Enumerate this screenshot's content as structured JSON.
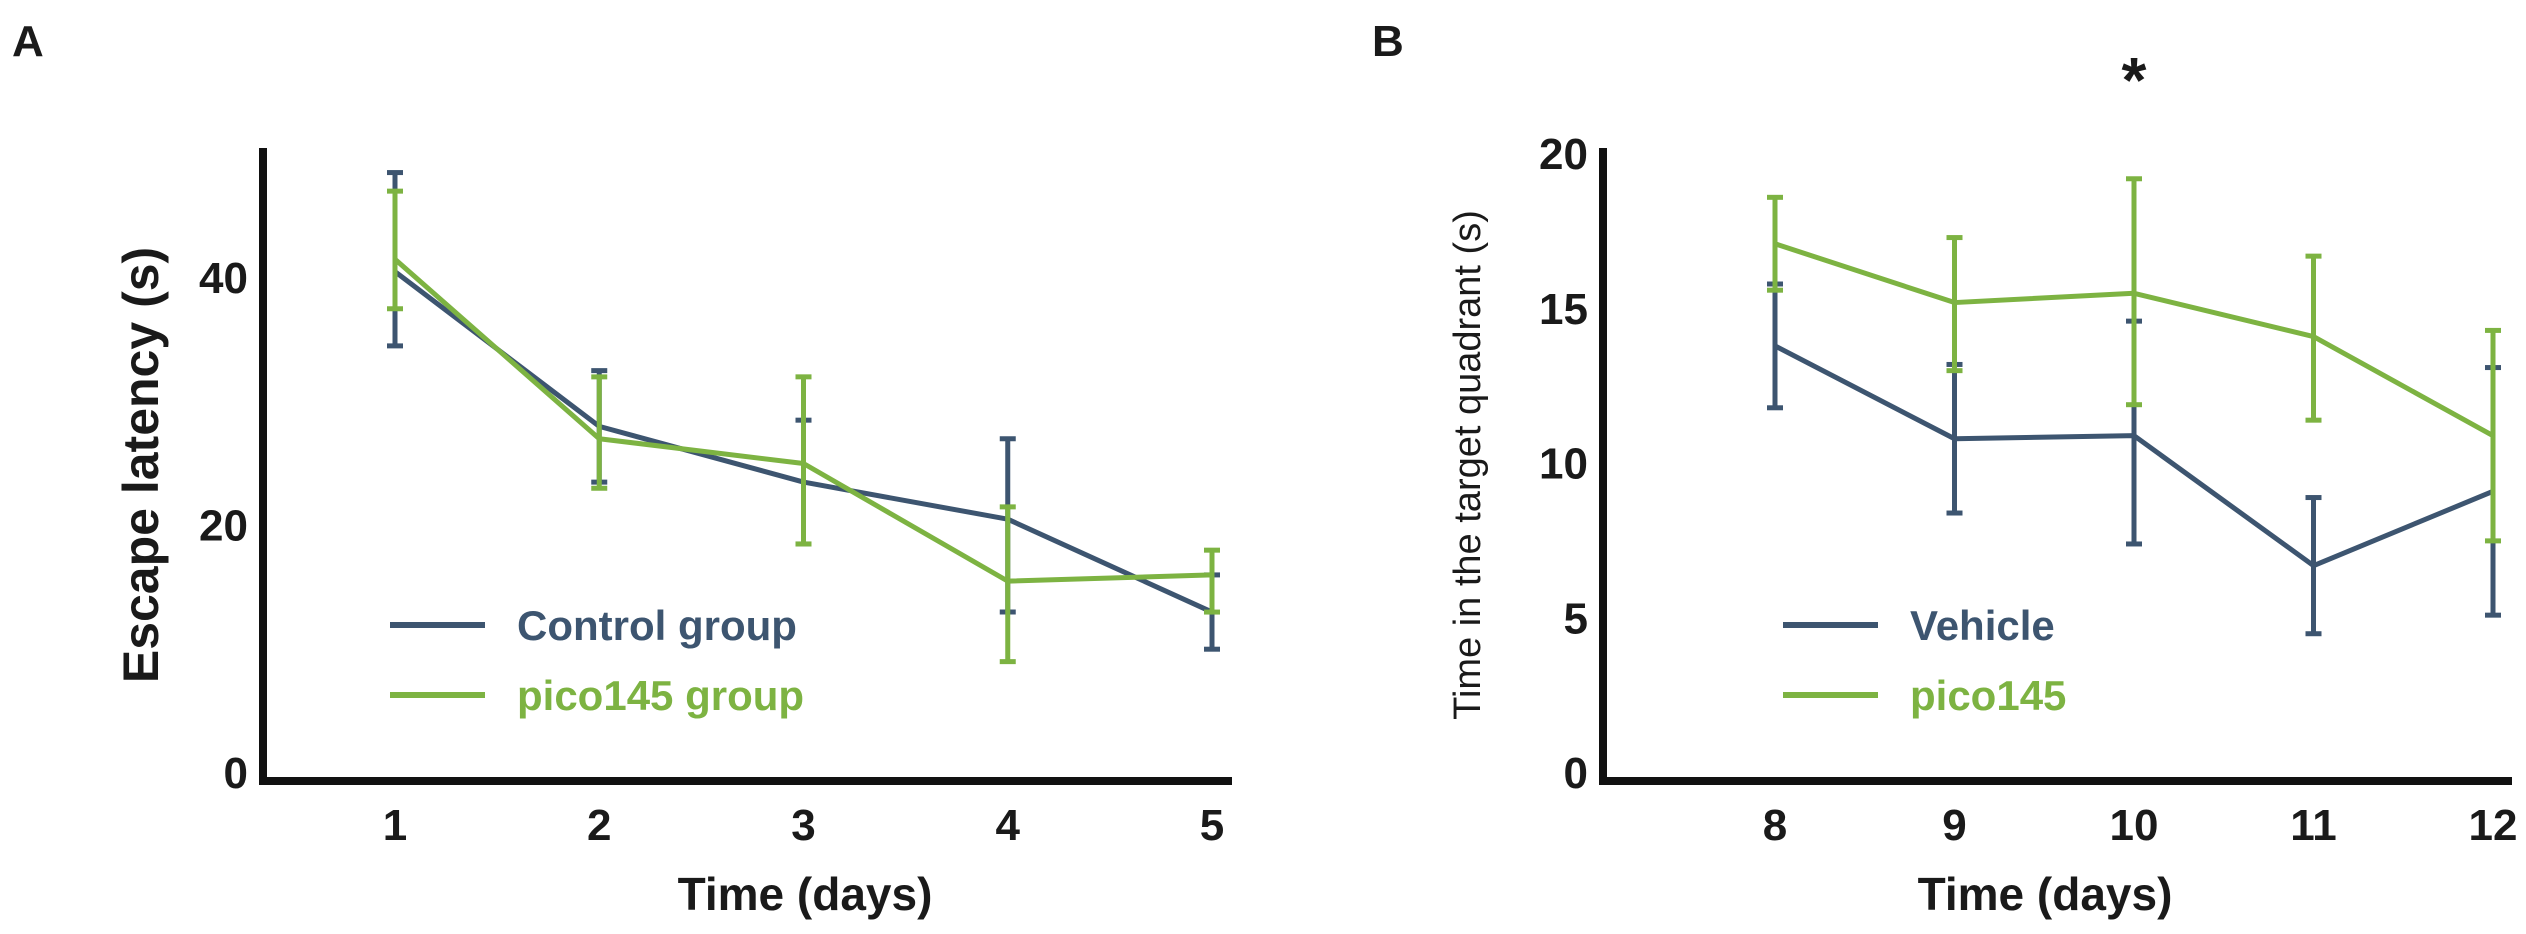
{
  "chart_data": [
    {
      "type": "line",
      "panel": "A",
      "title": "",
      "xlabel": "Time (days)",
      "ylabel": "Escape latency (s)",
      "x": [
        1,
        2,
        3,
        4,
        5
      ],
      "xlim": [
        0.4,
        5
      ],
      "ylim": [
        0,
        50
      ],
      "yticks": [
        0,
        20,
        40
      ],
      "grid": false,
      "legend_position": "lower-left",
      "series": [
        {
          "name": "Control group",
          "color": "#3d5570",
          "values": [
            40.5,
            28,
            23.5,
            20.5,
            13
          ],
          "err_low": [
            34.5,
            23.5,
            18.5,
            13,
            10
          ],
          "err_high": [
            48.5,
            32.5,
            28.5,
            27,
            16
          ]
        },
        {
          "name": "pico145 group",
          "color": "#7db342",
          "values": [
            41.5,
            27,
            25,
            15.5,
            16
          ],
          "err_low": [
            37.5,
            23,
            18.5,
            9,
            13
          ],
          "err_high": [
            47,
            32,
            32,
            21.5,
            18
          ]
        }
      ],
      "annotations": []
    },
    {
      "type": "line",
      "panel": "B",
      "title": "",
      "xlabel": "Time (days)",
      "ylabel": "Time in the target quadrant (s)",
      "x": [
        8,
        9,
        10,
        11,
        12
      ],
      "xlim": [
        7.2,
        12
      ],
      "ylim": [
        0,
        20
      ],
      "yticks": [
        0,
        5,
        10,
        15,
        20
      ],
      "grid": false,
      "legend_position": "lower-left",
      "series": [
        {
          "name": "Vehicle",
          "color": "#3d5570",
          "values": [
            13.8,
            10.8,
            10.9,
            6.7,
            9.1
          ],
          "err_low": [
            11.8,
            8.4,
            7.4,
            4.5,
            5.1
          ],
          "err_high": [
            15.8,
            13.2,
            14.6,
            8.9,
            13.1
          ]
        },
        {
          "name": "pico145",
          "color": "#7db342",
          "values": [
            17.1,
            15.2,
            15.5,
            14.1,
            10.9
          ],
          "err_low": [
            15.6,
            13,
            11.9,
            11.4,
            7.5
          ],
          "err_high": [
            18.6,
            17.3,
            19.2,
            16.7,
            14.3
          ]
        }
      ],
      "annotations": [
        {
          "text": "*",
          "x": 10
        }
      ]
    }
  ]
}
